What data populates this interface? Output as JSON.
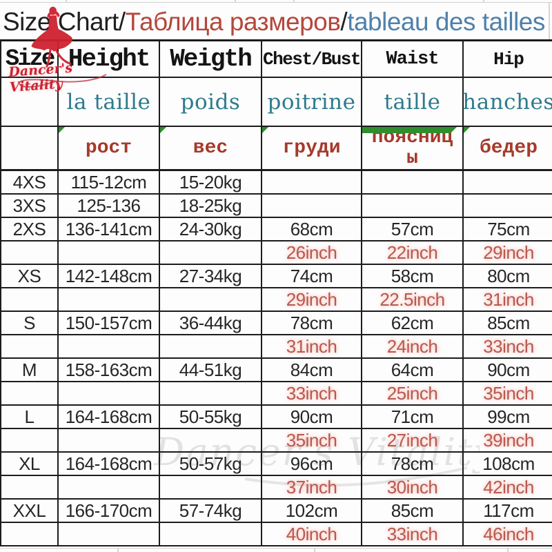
{
  "title": {
    "segments": [
      {
        "text": "Size Chart",
        "color": "#1f1f1f"
      },
      {
        "text": "/",
        "color": "#1f1f1f"
      },
      {
        "text": "Таблица размеров",
        "color": "#b5473c"
      },
      {
        "text": "/",
        "color": "#1f1f1f"
      },
      {
        "text": "tableau des tailles",
        "color": "#4f81ab"
      }
    ]
  },
  "logo": {
    "brand": "Dancer's Vitality"
  },
  "watermark": {
    "text": "Dancer's Vitality"
  },
  "table": {
    "header": [
      "Size",
      "Height",
      "Weigth",
      "Chest/Bust",
      "Waist",
      "Hip"
    ],
    "french_row": [
      "",
      "la taille",
      "poids",
      "poitrine",
      "taille",
      "hanches"
    ],
    "russian_row": [
      "",
      "рост",
      "вес",
      "груди",
      "поясницы",
      "бедер"
    ],
    "rows": [
      {
        "type": "cm",
        "cells": [
          "4XS",
          "115-12cm",
          "15-20kg",
          "",
          "",
          ""
        ]
      },
      {
        "type": "cm",
        "cells": [
          "3XS",
          "125-136",
          "18-25kg",
          "",
          "",
          ""
        ]
      },
      {
        "type": "cm",
        "cells": [
          "2XS",
          "136-141cm",
          "24-30kg",
          "68cm",
          "57cm",
          "75cm"
        ]
      },
      {
        "type": "inch",
        "cells": [
          "",
          "",
          "",
          "26inch",
          "22inch",
          "29inch"
        ]
      },
      {
        "type": "cm",
        "cells": [
          "XS",
          "142-148cm",
          "27-34kg",
          "74cm",
          "58cm",
          "80cm"
        ]
      },
      {
        "type": "inch",
        "cells": [
          "",
          "",
          "",
          "29inch",
          "22.5inch",
          "31inch"
        ]
      },
      {
        "type": "cm",
        "cells": [
          "S",
          "150-157cm",
          "36-44kg",
          "78cm",
          "62cm",
          "85cm"
        ]
      },
      {
        "type": "inch",
        "cells": [
          "",
          "",
          "",
          "31inch",
          "24inch",
          "33inch"
        ]
      },
      {
        "type": "cm",
        "cells": [
          "M",
          "158-163cm",
          "44-51kg",
          "84cm",
          "64cm",
          "90cm"
        ]
      },
      {
        "type": "inch",
        "cells": [
          "",
          "",
          "",
          "33inch",
          "25inch",
          "35inch"
        ]
      },
      {
        "type": "cm",
        "cells": [
          "L",
          "164-168cm",
          "50-55kg",
          "90cm",
          "71cm",
          "99cm"
        ]
      },
      {
        "type": "inch",
        "cells": [
          "",
          "",
          "",
          "35inch",
          "27inch",
          "39inch"
        ]
      },
      {
        "type": "cm",
        "cells": [
          "XL",
          "164-168cm",
          "50-57kg",
          "96cm",
          "78cm",
          "108cm"
        ]
      },
      {
        "type": "inch",
        "cells": [
          "",
          "",
          "",
          "37inch",
          "30inch",
          "42inch"
        ]
      },
      {
        "type": "cm",
        "cells": [
          "XXL",
          "166-170cm",
          "57-74kg",
          "102cm",
          "85cm",
          "117cm"
        ]
      },
      {
        "type": "inch",
        "cells": [
          "",
          "",
          "",
          "40inch",
          "33inch",
          "46inch"
        ]
      }
    ]
  },
  "colors": {
    "title_red": "#b5473c",
    "title_blue": "#4f81ab",
    "french_teal": "#2e7b8c",
    "russian_red": "#a63a2c",
    "inch_red": "#b65a50",
    "grid_line": "#1c1c1c",
    "logo_red": "#cf2130",
    "comment_green": "#2f8f2f",
    "watermark_gray": "#bdbdbd"
  }
}
